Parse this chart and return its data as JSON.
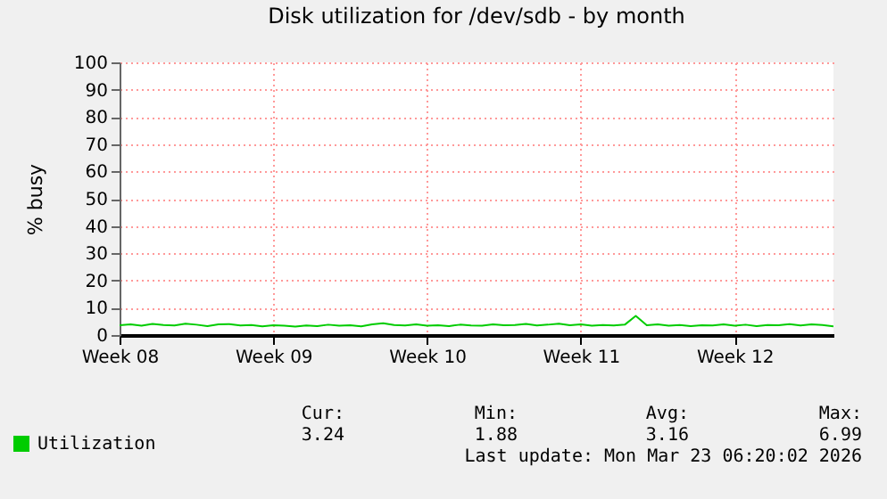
{
  "chart_data": {
    "type": "line",
    "title": "Disk utilization for /dev/sdb - by month",
    "ylabel": "% busy",
    "categories": [
      "Week 08",
      null,
      null,
      null,
      null,
      null,
      null,
      null,
      null,
      null,
      null,
      null,
      null,
      null,
      "Week 09",
      null,
      null,
      null,
      null,
      null,
      null,
      null,
      null,
      null,
      null,
      null,
      null,
      null,
      "Week 10",
      null,
      null,
      null,
      null,
      null,
      null,
      null,
      null,
      null,
      null,
      null,
      null,
      null,
      "Week 11",
      null,
      null,
      null,
      null,
      null,
      null,
      null,
      null,
      null,
      null,
      null,
      null,
      null,
      "Week 12",
      null,
      null,
      null,
      null,
      null,
      null,
      null,
      null,
      null
    ],
    "series": [
      {
        "name": "Utilization",
        "color": "#00cc00",
        "values": [
          3.6,
          3.9,
          3.4,
          4.1,
          3.7,
          3.5,
          4.2,
          3.8,
          3.3,
          3.9,
          4.0,
          3.5,
          3.7,
          3.2,
          3.6,
          3.4,
          3.1,
          3.5,
          3.3,
          3.8,
          3.4,
          3.6,
          3.2,
          3.9,
          4.3,
          3.7,
          3.5,
          3.9,
          3.4,
          3.6,
          3.3,
          3.8,
          3.5,
          3.4,
          3.9,
          3.6,
          3.7,
          4.1,
          3.5,
          3.8,
          4.2,
          3.6,
          3.9,
          3.4,
          3.7,
          3.5,
          3.8,
          7.0,
          3.6,
          3.9,
          3.4,
          3.7,
          3.3,
          3.6,
          3.5,
          3.9,
          3.4,
          3.8,
          3.3,
          3.7,
          3.6,
          4.0,
          3.5,
          3.9,
          3.7,
          3.2
        ]
      }
    ],
    "ylim": [
      0,
      100
    ],
    "yticks": [
      0,
      10,
      20,
      30,
      40,
      50,
      60,
      70,
      80,
      90,
      100
    ],
    "grid": true,
    "legend": "bottom",
    "annotations": [
      "Cur: 3.24",
      "Min: 1.88",
      "Avg: 3.16",
      "Max: 6.99",
      "Last update: Mon Mar 23 06:20:02 2026"
    ]
  }
}
